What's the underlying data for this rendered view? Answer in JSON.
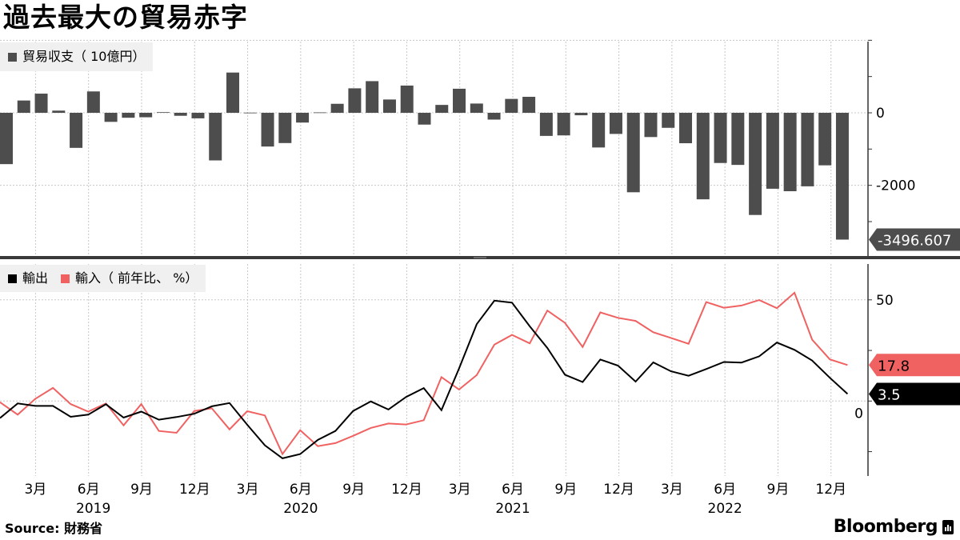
{
  "title": "過去最大の貿易赤字",
  "source_label": "Source:",
  "source_value": "財務省",
  "brand": "Bloomberg",
  "colors": {
    "bars": "#4d4d4d",
    "exports": "#000000",
    "imports": "#f06262",
    "legend_bg": "#f0f0f0"
  },
  "chart_data": [
    {
      "type": "bar",
      "legend": "貿易収支（ 10億円）",
      "legend_position": "top-left",
      "grid": true,
      "ylim": [
        -4000,
        2000
      ],
      "yticks": [
        {
          "value": 0,
          "label": "0"
        },
        {
          "value": -2000,
          "label": "-2000"
        }
      ],
      "last_value_label": "-3496.607",
      "x_start": "2019-01",
      "x_end": "2023-01",
      "values": [
        -1415.6,
        339.0,
        528.5,
        60.4,
        -967.1,
        589.5,
        -249.6,
        -136.3,
        -123.0,
        17.3,
        -82.1,
        -152.5,
        -1313.1,
        1109.8,
        4.9,
        -930.4,
        -834.1,
        -269.0,
        11.6,
        248.3,
        675.0,
        872.9,
        366.8,
        751.0,
        -325.4,
        217.4,
        663.7,
        255.3,
        -187.1,
        383.2,
        441.0,
        -637.2,
        -622.8,
        -67.9,
        -956.3,
        -582.4,
        -2191.1,
        -668.3,
        -414.1,
        -839.2,
        -2385.8,
        -1383.8,
        -1436.8,
        -2817.3,
        -2094.0,
        -2162.3,
        -2027.4,
        -1448.5,
        -3496.607
      ]
    },
    {
      "type": "line",
      "legend_position": "top-left",
      "grid": true,
      "ylim": [
        -37,
        67
      ],
      "yticks": [
        {
          "value": 50,
          "label": "50"
        },
        {
          "value": 0,
          "label": "0"
        }
      ],
      "x_start": "2019-01",
      "x_end": "2023-01",
      "series": [
        {
          "name": "輸出",
          "last_value_label": "3.5",
          "values": [
            -8.4,
            -1.2,
            -2.4,
            -2.4,
            -7.8,
            -6.7,
            -1.6,
            -8.2,
            -5.2,
            -9.2,
            -7.9,
            -6.3,
            -2.6,
            -1.0,
            -11.7,
            -21.9,
            -28.3,
            -26.2,
            -19.2,
            -14.8,
            -4.9,
            -0.2,
            -4.2,
            2.0,
            6.4,
            -4.5,
            16.1,
            38.0,
            49.6,
            48.6,
            37.0,
            26.2,
            13.0,
            9.4,
            20.5,
            17.5,
            9.6,
            19.1,
            14.7,
            12.5,
            15.8,
            19.3,
            19.0,
            22.1,
            28.9,
            25.3,
            20.0,
            11.5,
            3.5
          ]
        },
        {
          "name": "輸入（ 前年比、 %）",
          "last_value_label": "17.8",
          "values": [
            -0.6,
            -6.7,
            1.1,
            6.5,
            -1.5,
            -5.2,
            -1.2,
            -12.0,
            -1.5,
            -14.8,
            -15.7,
            -4.9,
            -3.6,
            -14.0,
            -5.0,
            -7.1,
            -26.2,
            -14.4,
            -22.3,
            -20.8,
            -17.2,
            -13.3,
            -11.1,
            -11.6,
            -9.5,
            11.8,
            5.7,
            12.8,
            27.9,
            32.7,
            28.5,
            44.7,
            38.6,
            26.7,
            43.8,
            41.1,
            39.6,
            34.0,
            31.2,
            28.3,
            48.9,
            46.1,
            47.2,
            49.9,
            45.9,
            53.5,
            30.3,
            20.6,
            17.8
          ]
        }
      ]
    }
  ],
  "x_axis": {
    "month_labels": [
      "3月",
      "6月",
      "9月",
      "12月",
      "3月",
      "6月",
      "9月",
      "12月",
      "3月",
      "6月",
      "9月",
      "12月",
      "3月",
      "6月",
      "9月",
      "12月"
    ],
    "year_labels": [
      "2019",
      "2020",
      "2021",
      "2022"
    ]
  }
}
